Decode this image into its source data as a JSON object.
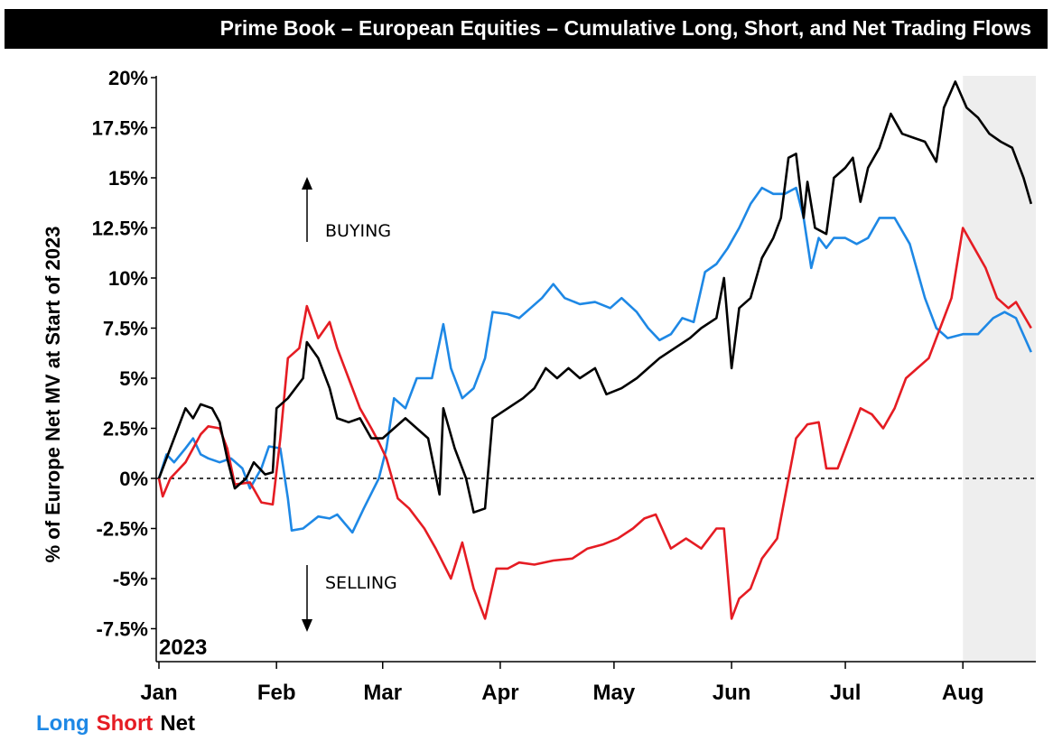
{
  "chart_data": {
    "type": "line",
    "title": "Prime Book – European Equities – Cumulative Long, Short, and Net Trading Flows",
    "ylabel": "% of Europe Net MV at Start of 2023",
    "xlabel": "",
    "year_label": "2023",
    "ylim": [
      -0.1,
      0.2
    ],
    "yticks": [
      {
        "value": 0.2,
        "label": "20%"
      },
      {
        "value": 0.175,
        "label": "17.5%"
      },
      {
        "value": 0.15,
        "label": "15%"
      },
      {
        "value": 0.125,
        "label": "12.5%"
      },
      {
        "value": 0.1,
        "label": "10%"
      },
      {
        "value": 0.075,
        "label": "7.5%"
      },
      {
        "value": 0.05,
        "label": "5%"
      },
      {
        "value": 0.025,
        "label": "2.5%"
      },
      {
        "value": 0,
        "label": "0%"
      },
      {
        "value": -0.025,
        "label": "-2.5%"
      },
      {
        "value": -0.05,
        "label": "-5%"
      },
      {
        "value": -0.075,
        "label": "-7.5%"
      }
    ],
    "xlim": [
      "2023-01-01",
      "2023-08-20"
    ],
    "xticks": [
      {
        "date": "2023-01-01",
        "label": "Jan"
      },
      {
        "date": "2023-02-01",
        "label": "Feb"
      },
      {
        "date": "2023-03-01",
        "label": "Mar"
      },
      {
        "date": "2023-04-01",
        "label": "Apr"
      },
      {
        "date": "2023-05-01",
        "label": "May"
      },
      {
        "date": "2023-06-01",
        "label": "Jun"
      },
      {
        "date": "2023-07-01",
        "label": "Jul"
      },
      {
        "date": "2023-08-01",
        "label": "Aug"
      }
    ],
    "shaded_region": {
      "from": "2023-08-01",
      "to": "2023-08-20",
      "color": "#eeeeee"
    },
    "zero_line": "dashed",
    "annotations": [
      {
        "text": "BUYING",
        "direction": "up"
      },
      {
        "text": "SELLING",
        "direction": "down"
      }
    ],
    "legend_position": "bottom-left",
    "series": [
      {
        "name": "Long",
        "color": "#1e88e5",
        "points": [
          [
            "2023-01-01",
            0.0
          ],
          [
            "2023-01-03",
            0.012
          ],
          [
            "2023-01-05",
            0.008
          ],
          [
            "2023-01-08",
            0.015
          ],
          [
            "2023-01-10",
            0.02
          ],
          [
            "2023-01-12",
            0.012
          ],
          [
            "2023-01-14",
            0.01
          ],
          [
            "2023-01-17",
            0.008
          ],
          [
            "2023-01-20",
            0.01
          ],
          [
            "2023-01-23",
            0.005
          ],
          [
            "2023-01-25",
            -0.005
          ],
          [
            "2023-01-28",
            0.005
          ],
          [
            "2023-01-30",
            0.016
          ],
          [
            "2023-02-02",
            0.015
          ],
          [
            "2023-02-04",
            -0.01
          ],
          [
            "2023-02-05",
            -0.026
          ],
          [
            "2023-02-08",
            -0.025
          ],
          [
            "2023-02-12",
            -0.019
          ],
          [
            "2023-02-15",
            -0.02
          ],
          [
            "2023-02-17",
            -0.018
          ],
          [
            "2023-02-21",
            -0.027
          ],
          [
            "2023-02-24",
            -0.015
          ],
          [
            "2023-02-28",
            0.0
          ],
          [
            "2023-03-02",
            0.015
          ],
          [
            "2023-03-04",
            0.04
          ],
          [
            "2023-03-07",
            0.035
          ],
          [
            "2023-03-10",
            0.05
          ],
          [
            "2023-03-14",
            0.05
          ],
          [
            "2023-03-17",
            0.077
          ],
          [
            "2023-03-19",
            0.055
          ],
          [
            "2023-03-22",
            0.04
          ],
          [
            "2023-03-25",
            0.045
          ],
          [
            "2023-03-28",
            0.06
          ],
          [
            "2023-03-30",
            0.083
          ],
          [
            "2023-04-03",
            0.082
          ],
          [
            "2023-04-06",
            0.08
          ],
          [
            "2023-04-09",
            0.085
          ],
          [
            "2023-04-12",
            0.09
          ],
          [
            "2023-04-15",
            0.097
          ],
          [
            "2023-04-18",
            0.09
          ],
          [
            "2023-04-22",
            0.087
          ],
          [
            "2023-04-26",
            0.088
          ],
          [
            "2023-04-30",
            0.085
          ],
          [
            "2023-05-03",
            0.09
          ],
          [
            "2023-05-07",
            0.083
          ],
          [
            "2023-05-10",
            0.075
          ],
          [
            "2023-05-13",
            0.069
          ],
          [
            "2023-05-16",
            0.072
          ],
          [
            "2023-05-19",
            0.08
          ],
          [
            "2023-05-22",
            0.078
          ],
          [
            "2023-05-25",
            0.103
          ],
          [
            "2023-05-28",
            0.107
          ],
          [
            "2023-05-31",
            0.115
          ],
          [
            "2023-06-03",
            0.125
          ],
          [
            "2023-06-06",
            0.137
          ],
          [
            "2023-06-09",
            0.145
          ],
          [
            "2023-06-12",
            0.142
          ],
          [
            "2023-06-15",
            0.142
          ],
          [
            "2023-06-18",
            0.145
          ],
          [
            "2023-06-20",
            0.13
          ],
          [
            "2023-06-22",
            0.105
          ],
          [
            "2023-06-24",
            0.12
          ],
          [
            "2023-06-26",
            0.115
          ],
          [
            "2023-06-28",
            0.12
          ],
          [
            "2023-07-01",
            0.12
          ],
          [
            "2023-07-04",
            0.117
          ],
          [
            "2023-07-07",
            0.12
          ],
          [
            "2023-07-10",
            0.13
          ],
          [
            "2023-07-14",
            0.13
          ],
          [
            "2023-07-18",
            0.117
          ],
          [
            "2023-07-22",
            0.09
          ],
          [
            "2023-07-25",
            0.075
          ],
          [
            "2023-07-28",
            0.07
          ],
          [
            "2023-08-01",
            0.072
          ],
          [
            "2023-08-05",
            0.072
          ],
          [
            "2023-08-09",
            0.08
          ],
          [
            "2023-08-12",
            0.083
          ],
          [
            "2023-08-15",
            0.08
          ],
          [
            "2023-08-19",
            0.063
          ]
        ]
      },
      {
        "name": "Short",
        "color": "#e51c23",
        "points": [
          [
            "2023-01-01",
            0.0
          ],
          [
            "2023-01-02",
            -0.009
          ],
          [
            "2023-01-04",
            0.0
          ],
          [
            "2023-01-08",
            0.008
          ],
          [
            "2023-01-10",
            0.015
          ],
          [
            "2023-01-12",
            0.022
          ],
          [
            "2023-01-14",
            0.026
          ],
          [
            "2023-01-17",
            0.025
          ],
          [
            "2023-01-19",
            0.015
          ],
          [
            "2023-01-21",
            -0.003
          ],
          [
            "2023-01-25",
            -0.002
          ],
          [
            "2023-01-28",
            -0.012
          ],
          [
            "2023-01-31",
            -0.013
          ],
          [
            "2023-02-02",
            0.02
          ],
          [
            "2023-02-04",
            0.06
          ],
          [
            "2023-02-07",
            0.065
          ],
          [
            "2023-02-09",
            0.086
          ],
          [
            "2023-02-12",
            0.07
          ],
          [
            "2023-02-15",
            0.078
          ],
          [
            "2023-02-17",
            0.065
          ],
          [
            "2023-02-20",
            0.05
          ],
          [
            "2023-02-23",
            0.035
          ],
          [
            "2023-02-26",
            0.025
          ],
          [
            "2023-02-28",
            0.018
          ],
          [
            "2023-03-02",
            0.01
          ],
          [
            "2023-03-05",
            -0.01
          ],
          [
            "2023-03-08",
            -0.015
          ],
          [
            "2023-03-12",
            -0.025
          ],
          [
            "2023-03-15",
            -0.035
          ],
          [
            "2023-03-19",
            -0.05
          ],
          [
            "2023-03-22",
            -0.032
          ],
          [
            "2023-03-25",
            -0.055
          ],
          [
            "2023-03-28",
            -0.07
          ],
          [
            "2023-03-31",
            -0.045
          ],
          [
            "2023-04-03",
            -0.045
          ],
          [
            "2023-04-06",
            -0.042
          ],
          [
            "2023-04-10",
            -0.043
          ],
          [
            "2023-04-15",
            -0.041
          ],
          [
            "2023-04-20",
            -0.04
          ],
          [
            "2023-04-24",
            -0.035
          ],
          [
            "2023-04-28",
            -0.033
          ],
          [
            "2023-05-02",
            -0.03
          ],
          [
            "2023-05-06",
            -0.025
          ],
          [
            "2023-05-09",
            -0.02
          ],
          [
            "2023-05-12",
            -0.018
          ],
          [
            "2023-05-16",
            -0.035
          ],
          [
            "2023-05-20",
            -0.03
          ],
          [
            "2023-05-24",
            -0.035
          ],
          [
            "2023-05-28",
            -0.025
          ],
          [
            "2023-05-30",
            -0.025
          ],
          [
            "2023-06-01",
            -0.07
          ],
          [
            "2023-06-03",
            -0.06
          ],
          [
            "2023-06-06",
            -0.055
          ],
          [
            "2023-06-09",
            -0.04
          ],
          [
            "2023-06-13",
            -0.03
          ],
          [
            "2023-06-16",
            0.0
          ],
          [
            "2023-06-18",
            0.02
          ],
          [
            "2023-06-21",
            0.027
          ],
          [
            "2023-06-24",
            0.028
          ],
          [
            "2023-06-26",
            0.005
          ],
          [
            "2023-06-29",
            0.005
          ],
          [
            "2023-07-02",
            0.02
          ],
          [
            "2023-07-05",
            0.035
          ],
          [
            "2023-07-08",
            0.032
          ],
          [
            "2023-07-11",
            0.025
          ],
          [
            "2023-07-14",
            0.035
          ],
          [
            "2023-07-17",
            0.05
          ],
          [
            "2023-07-20",
            0.055
          ],
          [
            "2023-07-23",
            0.06
          ],
          [
            "2023-07-26",
            0.075
          ],
          [
            "2023-07-29",
            0.09
          ],
          [
            "2023-08-01",
            0.125
          ],
          [
            "2023-08-04",
            0.115
          ],
          [
            "2023-08-07",
            0.105
          ],
          [
            "2023-08-10",
            0.09
          ],
          [
            "2023-08-13",
            0.085
          ],
          [
            "2023-08-15",
            0.088
          ],
          [
            "2023-08-19",
            0.075
          ]
        ]
      },
      {
        "name": "Net",
        "color": "#000000",
        "points": [
          [
            "2023-01-01",
            0.0
          ],
          [
            "2023-01-03",
            0.01
          ],
          [
            "2023-01-06",
            0.025
          ],
          [
            "2023-01-08",
            0.035
          ],
          [
            "2023-01-10",
            0.03
          ],
          [
            "2023-01-12",
            0.037
          ],
          [
            "2023-01-15",
            0.035
          ],
          [
            "2023-01-17",
            0.028
          ],
          [
            "2023-01-19",
            0.01
          ],
          [
            "2023-01-21",
            -0.005
          ],
          [
            "2023-01-24",
            0.0
          ],
          [
            "2023-01-26",
            0.008
          ],
          [
            "2023-01-29",
            0.002
          ],
          [
            "2023-01-31",
            0.003
          ],
          [
            "2023-02-01",
            0.035
          ],
          [
            "2023-02-04",
            0.04
          ],
          [
            "2023-02-08",
            0.05
          ],
          [
            "2023-02-09",
            0.068
          ],
          [
            "2023-02-12",
            0.06
          ],
          [
            "2023-02-15",
            0.045
          ],
          [
            "2023-02-17",
            0.03
          ],
          [
            "2023-02-20",
            0.028
          ],
          [
            "2023-02-23",
            0.03
          ],
          [
            "2023-02-26",
            0.02
          ],
          [
            "2023-03-01",
            0.02
          ],
          [
            "2023-03-04",
            0.025
          ],
          [
            "2023-03-07",
            0.03
          ],
          [
            "2023-03-10",
            0.025
          ],
          [
            "2023-03-13",
            0.02
          ],
          [
            "2023-03-16",
            -0.008
          ],
          [
            "2023-03-17",
            0.035
          ],
          [
            "2023-03-20",
            0.015
          ],
          [
            "2023-03-23",
            0.0
          ],
          [
            "2023-03-25",
            -0.017
          ],
          [
            "2023-03-28",
            -0.015
          ],
          [
            "2023-03-30",
            0.03
          ],
          [
            "2023-04-03",
            0.035
          ],
          [
            "2023-04-07",
            0.04
          ],
          [
            "2023-04-10",
            0.045
          ],
          [
            "2023-04-13",
            0.055
          ],
          [
            "2023-04-16",
            0.05
          ],
          [
            "2023-04-19",
            0.055
          ],
          [
            "2023-04-22",
            0.05
          ],
          [
            "2023-04-26",
            0.055
          ],
          [
            "2023-04-29",
            0.042
          ],
          [
            "2023-05-03",
            0.045
          ],
          [
            "2023-05-07",
            0.05
          ],
          [
            "2023-05-10",
            0.055
          ],
          [
            "2023-05-13",
            0.06
          ],
          [
            "2023-05-17",
            0.065
          ],
          [
            "2023-05-21",
            0.07
          ],
          [
            "2023-05-24",
            0.075
          ],
          [
            "2023-05-28",
            0.08
          ],
          [
            "2023-05-30",
            0.1
          ],
          [
            "2023-06-01",
            0.055
          ],
          [
            "2023-06-03",
            0.085
          ],
          [
            "2023-06-06",
            0.09
          ],
          [
            "2023-06-09",
            0.11
          ],
          [
            "2023-06-12",
            0.12
          ],
          [
            "2023-06-14",
            0.13
          ],
          [
            "2023-06-16",
            0.16
          ],
          [
            "2023-06-18",
            0.162
          ],
          [
            "2023-06-20",
            0.13
          ],
          [
            "2023-06-21",
            0.148
          ],
          [
            "2023-06-23",
            0.125
          ],
          [
            "2023-06-26",
            0.122
          ],
          [
            "2023-06-28",
            0.15
          ],
          [
            "2023-07-01",
            0.155
          ],
          [
            "2023-07-03",
            0.16
          ],
          [
            "2023-07-05",
            0.138
          ],
          [
            "2023-07-07",
            0.155
          ],
          [
            "2023-07-10",
            0.165
          ],
          [
            "2023-07-13",
            0.182
          ],
          [
            "2023-07-16",
            0.172
          ],
          [
            "2023-07-19",
            0.17
          ],
          [
            "2023-07-22",
            0.168
          ],
          [
            "2023-07-25",
            0.158
          ],
          [
            "2023-07-27",
            0.185
          ],
          [
            "2023-07-30",
            0.198
          ],
          [
            "2023-08-02",
            0.185
          ],
          [
            "2023-08-05",
            0.18
          ],
          [
            "2023-08-08",
            0.172
          ],
          [
            "2023-08-11",
            0.168
          ],
          [
            "2023-08-14",
            0.165
          ],
          [
            "2023-08-17",
            0.15
          ],
          [
            "2023-08-19",
            0.137
          ]
        ]
      }
    ]
  }
}
